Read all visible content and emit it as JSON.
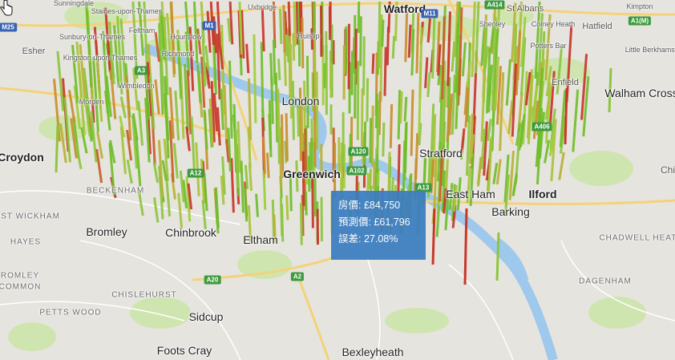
{
  "map": {
    "places_major": [
      {
        "name": "Watford",
        "bold": true
      },
      {
        "name": "Croydon",
        "bold": true
      },
      {
        "name": "Greenwich",
        "bold": true
      },
      {
        "name": "Ilford",
        "bold": true
      },
      {
        "name": "Bromley"
      },
      {
        "name": "Chinbrook"
      },
      {
        "name": "Eltham"
      },
      {
        "name": "Sidcup"
      },
      {
        "name": "Foots Cray"
      },
      {
        "name": "Bexleyheath"
      },
      {
        "name": "Barking"
      },
      {
        "name": "East Ham"
      },
      {
        "name": "Stratford"
      },
      {
        "name": "London"
      },
      {
        "name": "Walham Cross"
      },
      {
        "name": "Enfield"
      },
      {
        "name": "St Albans"
      },
      {
        "name": "Hatfield"
      },
      {
        "name": "Esher"
      }
    ],
    "places_minor": [
      "Staines-upon-Thames",
      "Sunbury-on-Thames",
      "Kingston upon Thames",
      "Uxbridge",
      "Ruislip",
      "Hounslow",
      "Richmond",
      "Wimbledon",
      "Shenley",
      "Colney Heath",
      "Potters Bar",
      "Little Berkhamsted",
      "Kimpton",
      "Chi",
      "Sunningdale",
      "Feltham",
      "Morden"
    ],
    "places_caps": [
      "Beckenham",
      "West Wickham",
      "Hayes",
      "Romley",
      "Common",
      "Chislehurst",
      "Petts Wood",
      "Chadwell Heath",
      "Dagenham"
    ],
    "roads": [
      "M25",
      "M1",
      "A1(M)",
      "A20",
      "A2",
      "A13",
      "A102",
      "A120",
      "A414",
      "A406",
      "M11",
      "A12",
      "A3"
    ]
  },
  "tooltip": {
    "price": "房價: £84,750",
    "predicted": "預測價: £61,796",
    "error": "誤差: 27.08%"
  }
}
